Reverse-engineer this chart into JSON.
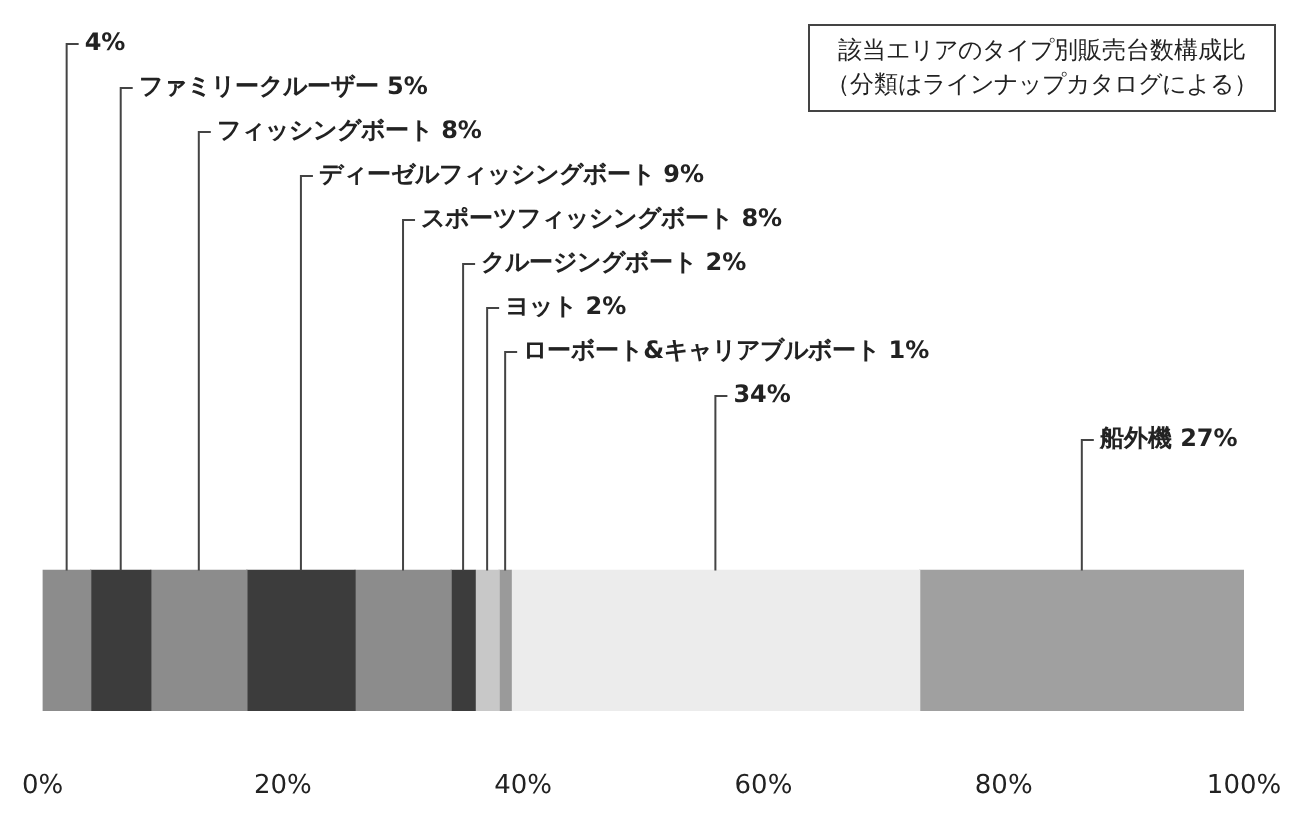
{
  "chart_data": {
    "type": "bar",
    "orientation": "horizontal",
    "stacked": true,
    "title": "該当エリアのタイプ別販売台数構成比",
    "subtitle": "（分類はラインナップカタログによる）",
    "categories": [
      null
    ],
    "xlim": [
      0,
      100
    ],
    "xticks": [
      {
        "value": 0,
        "label": "0%"
      },
      {
        "value": 20,
        "label": "20%"
      },
      {
        "value": 40,
        "label": "40%"
      },
      {
        "value": 60,
        "label": "60%"
      },
      {
        "value": 80,
        "label": "80%"
      },
      {
        "value": 100,
        "label": "100%"
      }
    ],
    "grid": false,
    "series": [
      {
        "color": "#8c8c8c",
        "values": [
          4
        ],
        "value_labels": [
          "4%"
        ]
      },
      {
        "name": "ファミリークルーザー",
        "color": "#3c3c3c",
        "values": [
          5
        ],
        "value_labels": [
          "5%"
        ]
      },
      {
        "name": "フィッシングボート",
        "color": "#8c8c8c",
        "values": [
          8
        ],
        "value_labels": [
          "8%"
        ]
      },
      {
        "name": "ディーゼルフィッシングボート",
        "color": "#3c3c3c",
        "values": [
          9
        ],
        "value_labels": [
          "9%"
        ]
      },
      {
        "name": "スポーツフィッシングボート",
        "color": "#8c8c8c",
        "values": [
          8
        ],
        "value_labels": [
          "8%"
        ]
      },
      {
        "name": "クルージングボート",
        "color": "#3c3c3c",
        "values": [
          2
        ],
        "value_labels": [
          "2%"
        ]
      },
      {
        "name": "ヨット",
        "color": "#c8c8c8",
        "values": [
          2
        ],
        "value_labels": [
          "2%"
        ]
      },
      {
        "name": "ローボート&キャリアブルボート",
        "color": "#9a9a9a",
        "values": [
          1
        ],
        "value_labels": [
          "1%"
        ]
      },
      {
        "color": "#ececec",
        "values": [
          34
        ],
        "value_labels": [
          "34%"
        ]
      },
      {
        "name": "船外機",
        "color": "#a0a0a0",
        "values": [
          27
        ],
        "value_labels": [
          "27%"
        ]
      }
    ]
  }
}
